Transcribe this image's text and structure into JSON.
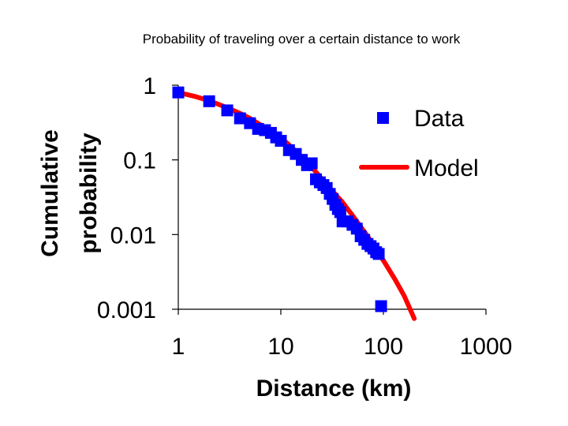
{
  "chart_data": {
    "type": "scatter",
    "title": "Probability of traveling over a certain distance to work",
    "xlabel": "Distance  (km)",
    "ylabel_lines": [
      "Cumulative",
      "probability"
    ],
    "x_scale": "log",
    "y_scale": "log",
    "xlim": [
      1,
      1000
    ],
    "ylim": [
      0.001,
      1
    ],
    "x_ticks": [
      1,
      10,
      100,
      1000
    ],
    "x_tick_labels": [
      "1",
      "10",
      "100",
      "1000"
    ],
    "y_ticks": [
      1,
      0.1,
      0.01,
      0.001
    ],
    "y_tick_labels": [
      "1",
      "0.1",
      "0.01",
      "0.001"
    ],
    "grid": false,
    "legend_placement": "right",
    "series": [
      {
        "name": "Data",
        "kind": "markers",
        "marker": "square",
        "color": "#0000ff",
        "x": [
          1.0,
          2.0,
          3.0,
          4.0,
          5.0,
          6.0,
          7.0,
          8.0,
          9.0,
          10.0,
          12.0,
          14.0,
          16.0,
          18.0,
          20.0,
          22.0,
          24.0,
          26.0,
          28.0,
          30.0,
          32.0,
          34.0,
          36.0,
          38.0,
          40.0,
          45.0,
          50.0,
          55.0,
          60.0,
          65.0,
          70.0,
          75.0,
          80.0,
          85.0,
          90.0,
          95.0
        ],
        "y": [
          0.8,
          0.61,
          0.46,
          0.36,
          0.31,
          0.26,
          0.25,
          0.23,
          0.2,
          0.18,
          0.135,
          0.12,
          0.1,
          0.085,
          0.09,
          0.055,
          0.05,
          0.046,
          0.042,
          0.035,
          0.03,
          0.025,
          0.022,
          0.02,
          0.015,
          0.015,
          0.0135,
          0.012,
          0.0095,
          0.0085,
          0.0075,
          0.007,
          0.0065,
          0.0058,
          0.0055,
          0.0011
        ]
      },
      {
        "name": "Model",
        "kind": "line",
        "color": "#ff0000",
        "x": [
          1,
          1.5,
          2,
          3,
          4,
          5,
          7,
          10,
          15,
          20,
          30,
          40,
          50,
          70,
          100,
          130,
          160,
          200
        ],
        "y": [
          0.8,
          0.7,
          0.62,
          0.5,
          0.42,
          0.36,
          0.27,
          0.2,
          0.12,
          0.08,
          0.042,
          0.027,
          0.018,
          0.0095,
          0.0045,
          0.0025,
          0.0015,
          0.00075
        ]
      }
    ]
  }
}
